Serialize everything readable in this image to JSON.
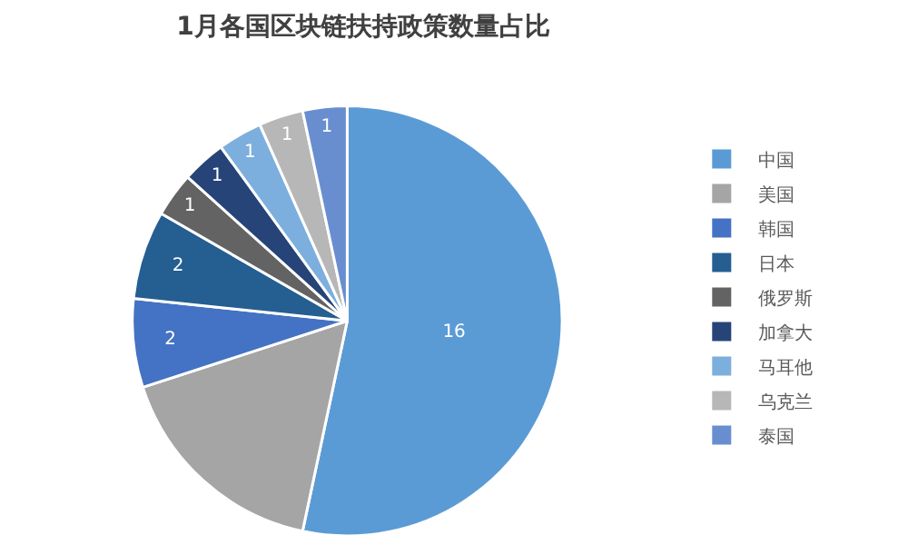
{
  "chart_data": {
    "type": "pie",
    "title": "1月各国区块链扶持政策数量占比",
    "categories": [
      "中国",
      "美国",
      "韩国",
      "日本",
      "俄罗斯",
      "加拿大",
      "马耳他",
      "乌克兰",
      "泰国"
    ],
    "values": [
      16,
      5,
      2,
      2,
      1,
      1,
      1,
      1,
      1
    ],
    "value_labels": [
      "16",
      null,
      "2",
      "2",
      "1",
      "1",
      "1",
      "1",
      "1"
    ],
    "colors": [
      "#5b9bd5",
      "#a5a5a5",
      "#4472c4",
      "#255e91",
      "#636363",
      "#264478",
      "#7cafdd",
      "#b7b7b7",
      "#698ed0"
    ],
    "legend": "right"
  }
}
